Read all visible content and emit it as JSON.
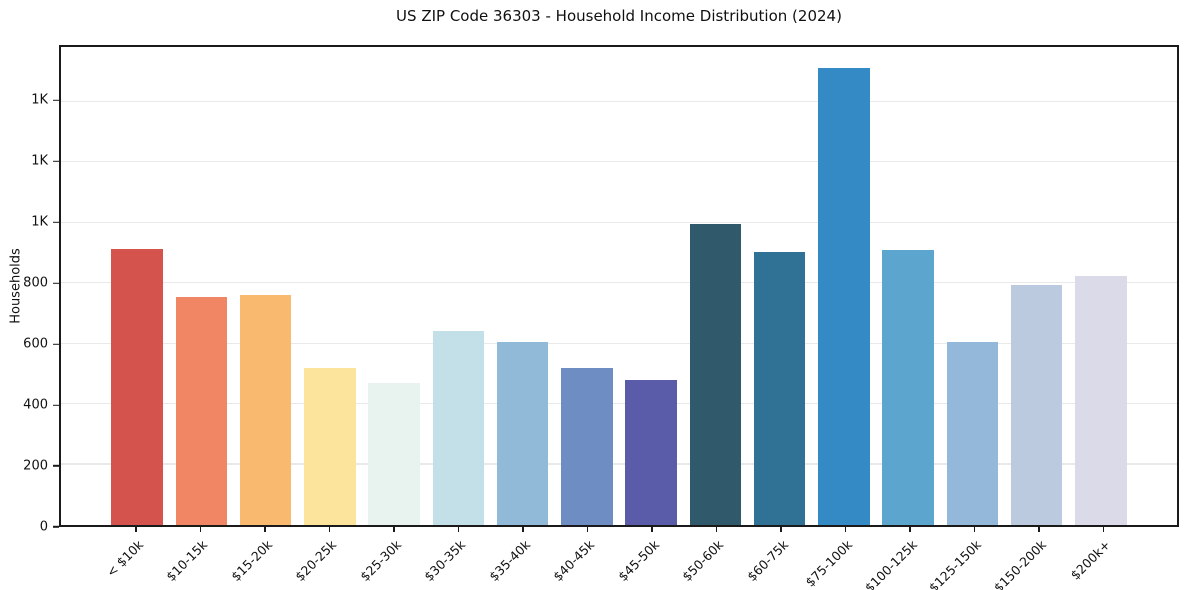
{
  "chart_data": {
    "type": "bar",
    "title": "US ZIP Code 36303 - Household Income Distribution (2024)",
    "xlabel": "",
    "ylabel": "Households",
    "categories": [
      "< $10k",
      "$10-15k",
      "$15-20k",
      "$20-25k",
      "$25-30k",
      "$30-35k",
      "$35-40k",
      "$40-45k",
      "$45-50k",
      "$50-60k",
      "$60-75k",
      "$75-100k",
      "$100-125k",
      "$125-150k",
      "$150-200k",
      "$200k+"
    ],
    "values": [
      915,
      755,
      762,
      519,
      470,
      641,
      605,
      521,
      479,
      997,
      905,
      1513,
      910,
      607,
      795,
      824
    ],
    "bar_colors": [
      "#d5534d",
      "#f08663",
      "#f9b96f",
      "#fde49c",
      "#e8f2ee",
      "#c3dfe8",
      "#90bad8",
      "#6d8dc3",
      "#5a5caa",
      "#30596b",
      "#2f7295",
      "#338ac4",
      "#5ca5ce",
      "#94b8d9",
      "#bccadf",
      "#dadae9"
    ],
    "ylim": [
      0,
      1582
    ],
    "ytick_values": [
      0,
      200,
      400,
      600,
      800,
      1000,
      1200,
      1400
    ],
    "ytick_labels": [
      "0",
      "200",
      "400",
      "600",
      "800",
      "1K",
      "1K",
      "1K"
    ],
    "grid": "horizontal-only",
    "grid_color": "#e9e9e9",
    "legend": "none",
    "xtick_rotation_deg": 45
  }
}
